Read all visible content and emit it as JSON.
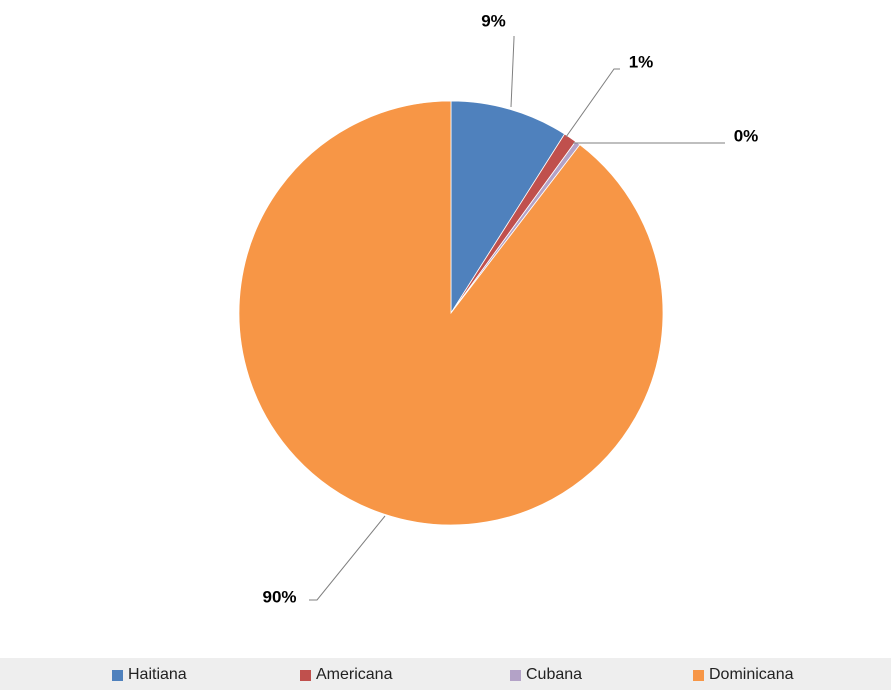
{
  "chart_data": {
    "type": "pie",
    "title": "",
    "start_angle_deg": 0,
    "direction": "clockwise",
    "slices": [
      {
        "label": "Haitiana",
        "value": 9,
        "display": "9%",
        "color": "#4f81bd"
      },
      {
        "label": "Americana",
        "value": 1,
        "display": "1%",
        "color": "#c0504d"
      },
      {
        "label": "Cubana",
        "value": 0.4,
        "display": "0%",
        "color": "#b3a2c7"
      },
      {
        "label": "Dominicana",
        "value": 89.6,
        "display": "90%",
        "color": "#f79646"
      }
    ],
    "legend": {
      "position": "bottom",
      "entries": [
        "Haitiana",
        "Americana",
        "Cubana",
        "Dominicana"
      ]
    },
    "data_labels": [
      "9%",
      "1%",
      "0%",
      "90%"
    ]
  }
}
